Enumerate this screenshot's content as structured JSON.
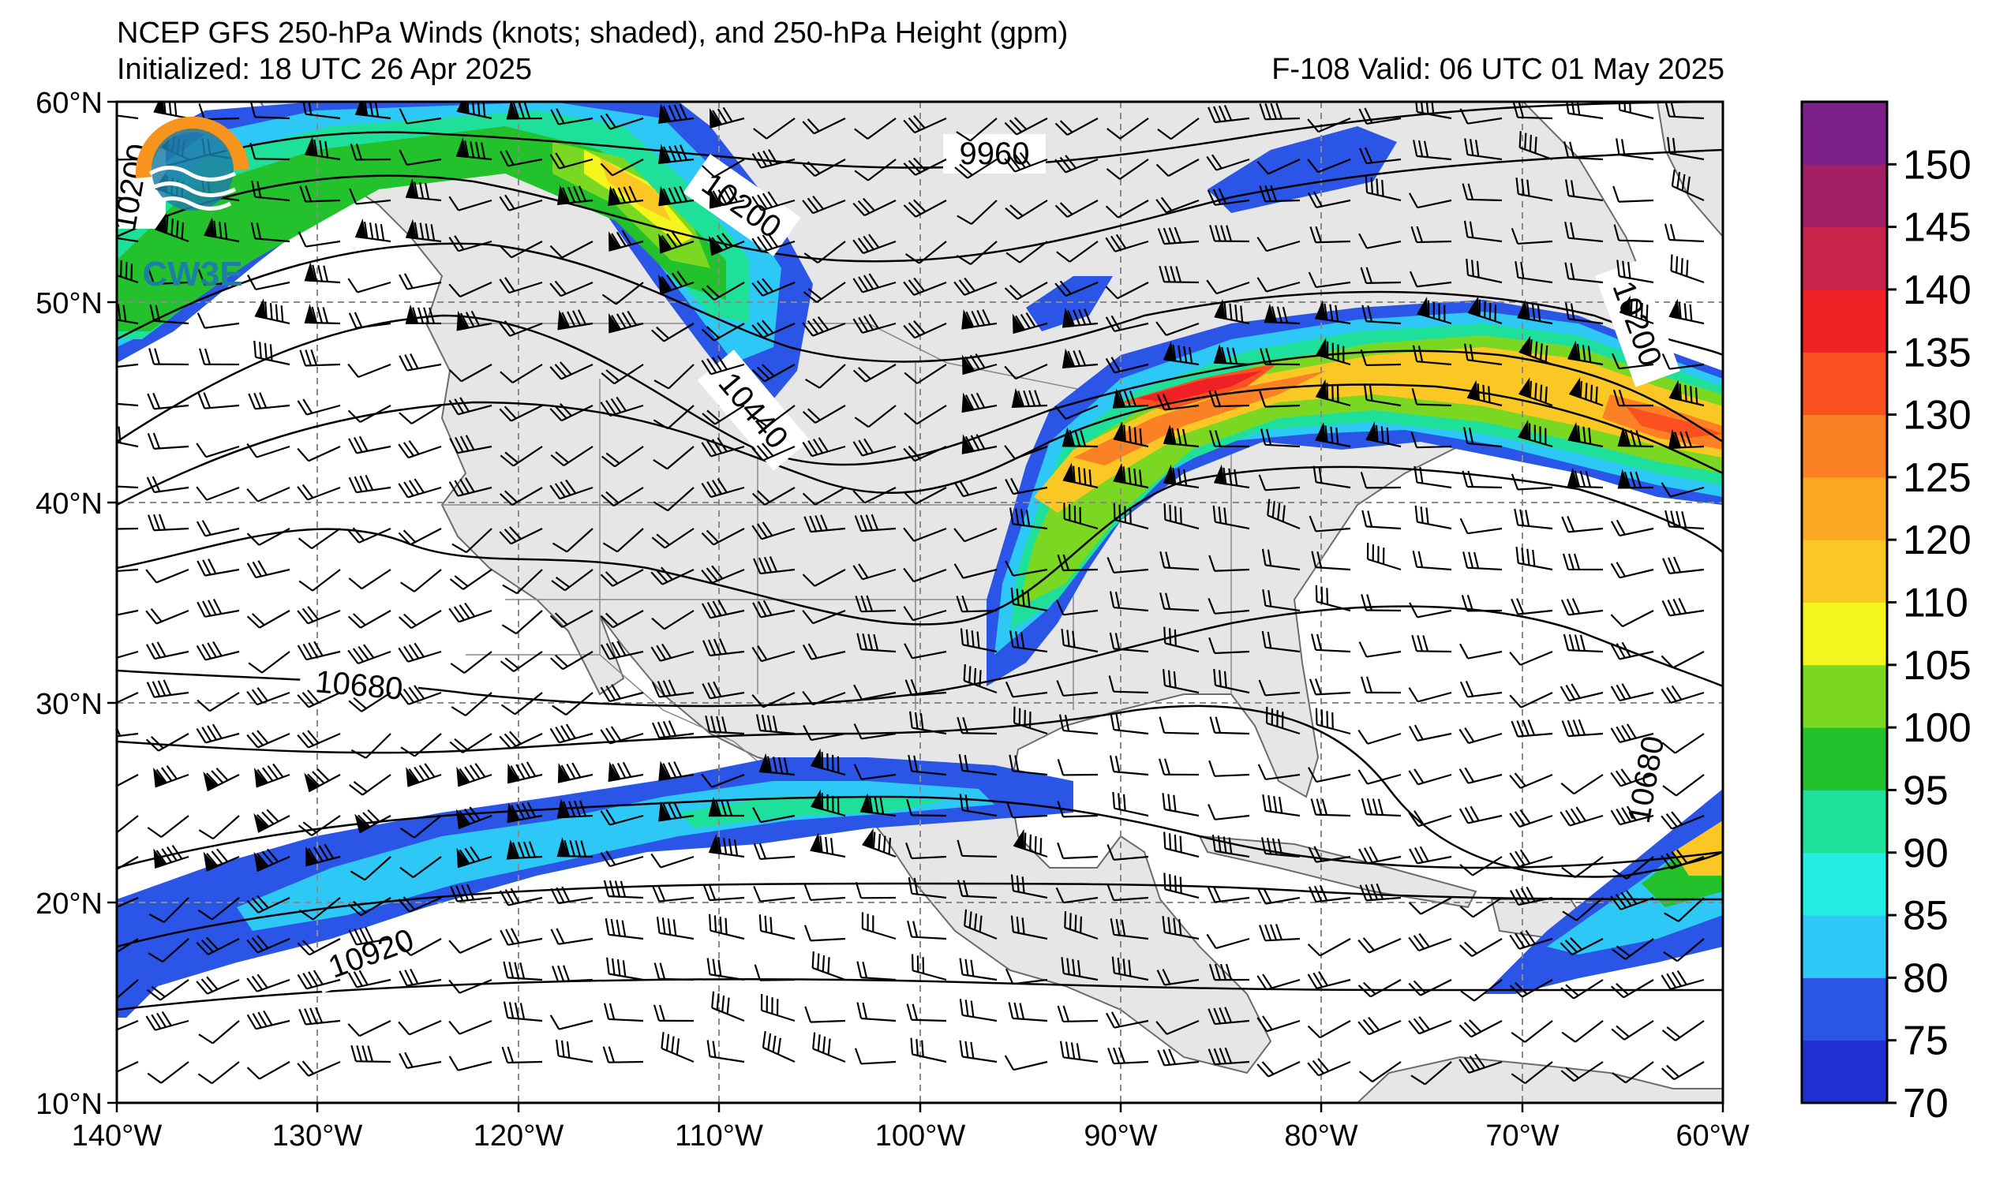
{
  "titles": {
    "line1": "NCEP GFS 250-hPa Winds (knots; shaded), and 250-hPa Height (gpm)",
    "line2_left": "Initialized: 18 UTC 26 Apr 2025",
    "line2_right": "F-108  Valid: 06 UTC 01 May 2025"
  },
  "logo": {
    "text": "CW3E"
  },
  "axes": {
    "lat_labels": [
      "60°N",
      "50°N",
      "40°N",
      "30°N",
      "20°N",
      "10°N"
    ],
    "lon_labels": [
      "140°W",
      "130°W",
      "120°W",
      "110°W",
      "100°W",
      "90°W",
      "80°W",
      "70°W",
      "60°W"
    ],
    "lat_range": [
      10,
      60
    ],
    "lon_range": [
      -140,
      -60
    ],
    "grid": true
  },
  "contour_labels": [
    "10200",
    "9960",
    "10200",
    "10440",
    "10680",
    "10680",
    "10920",
    "10200"
  ],
  "colorbar": {
    "ticks": [
      "150",
      "145",
      "140",
      "135",
      "130",
      "125",
      "120",
      "110",
      "105",
      "100",
      "95",
      "90",
      "85",
      "80",
      "75",
      "70"
    ],
    "levels": [
      70,
      75,
      80,
      85,
      90,
      95,
      100,
      105,
      110,
      120,
      125,
      130,
      135,
      140,
      145,
      150,
      155
    ],
    "colors": [
      "#1f2fd0",
      "#2a55e6",
      "#2ec8f6",
      "#22eee6",
      "#1fe09a",
      "#23c12b",
      "#7ad823",
      "#f5f51e",
      "#fbc724",
      "#fba822",
      "#fb8124",
      "#fb5120",
      "#f02125",
      "#c8244a",
      "#a22063",
      "#7d208a"
    ]
  },
  "colors": {
    "land": "#e6e6e6",
    "ocean": "#ffffff",
    "grid": "#8a8a8a",
    "contour": "#000000"
  }
}
